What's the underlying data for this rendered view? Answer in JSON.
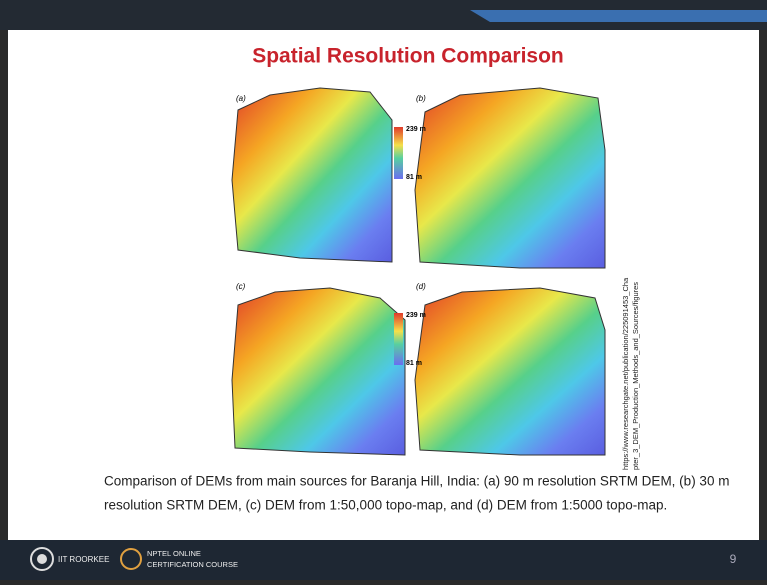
{
  "header": {
    "title": "Spatial Resolution Comparison"
  },
  "figure": {
    "panels": [
      {
        "label": "(a)"
      },
      {
        "label": "(b)"
      },
      {
        "label": "(c)"
      },
      {
        "label": "(d)"
      }
    ],
    "colorbars": [
      {
        "max": "239 m",
        "min": "81 m"
      },
      {
        "max": "239 m",
        "min": "81 m"
      }
    ],
    "source": [
      "https://www.researchgate.net/publication/225091453_Cha",
      "pter_3_DEM_Production_Methods_and_Sources/figures"
    ]
  },
  "caption": [
    "Comparison of DEMs from main sources for Baranja Hill, India: (a) 90 m resolution SRTM DEM, (b) 30 m",
    "resolution SRTM DEM, (c) DEM from 1:50,000 topo-map, and (d) DEM from 1:5000 topo-map."
  ],
  "footer": {
    "institute": "IIT ROORKEE",
    "course": [
      "NPTEL ONLINE",
      "CERTIFICATION COURSE"
    ],
    "page": "9"
  }
}
